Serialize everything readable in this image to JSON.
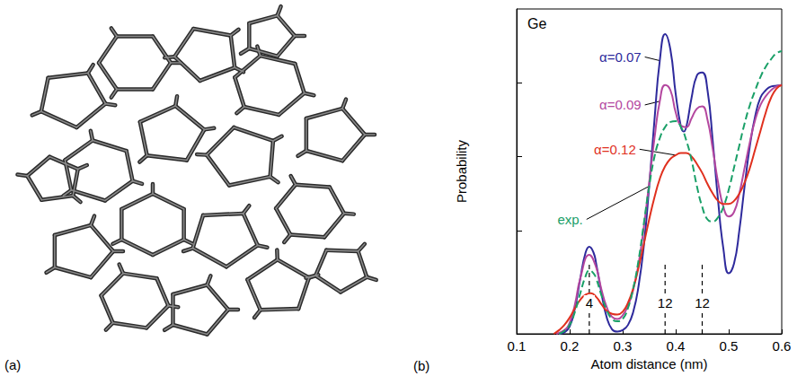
{
  "panel_labels": {
    "a": "(a)",
    "b": "(b)"
  },
  "chart_data": {
    "type": "line",
    "title": "Ge",
    "x_label": "Atom distance (nm)",
    "y_label": "Probability",
    "xlim": [
      0.1,
      0.6
    ],
    "xticks": [
      0.1,
      0.2,
      0.3,
      0.4,
      0.5,
      0.6
    ],
    "ylim": [
      0,
      4.4
    ],
    "yticks": [
      1.4,
      2.4,
      3.4
    ],
    "tick_labels": "x",
    "series": [
      {
        "name": "α=0.07",
        "color": "#2e2a9c",
        "line_style": "solid",
        "x": [
          0.18,
          0.19,
          0.2,
          0.21,
          0.22,
          0.23,
          0.237,
          0.245,
          0.25,
          0.26,
          0.27,
          0.28,
          0.29,
          0.3,
          0.31,
          0.32,
          0.33,
          0.34,
          0.35,
          0.36,
          0.37,
          0.38,
          0.39,
          0.4,
          0.41,
          0.415,
          0.42,
          0.43,
          0.44,
          0.45,
          0.46,
          0.47,
          0.48,
          0.49,
          0.5,
          0.51,
          0.52,
          0.53,
          0.54,
          0.55,
          0.56,
          0.57,
          0.58,
          0.59,
          0.6
        ],
        "values": [
          0,
          0.02,
          0.1,
          0.35,
          0.75,
          1.1,
          1.18,
          1.1,
          0.95,
          0.55,
          0.22,
          0.06,
          0.03,
          0.05,
          0.12,
          0.3,
          0.65,
          1.2,
          2.0,
          2.9,
          3.7,
          4.06,
          3.85,
          3.25,
          2.8,
          2.74,
          2.8,
          3.2,
          3.5,
          3.54,
          3.3,
          2.6,
          1.8,
          1.15,
          0.82,
          0.95,
          1.4,
          2.0,
          2.55,
          2.95,
          3.2,
          3.3,
          3.35,
          3.36,
          3.37
        ]
      },
      {
        "name": "α=0.09",
        "color": "#b4479f",
        "line_style": "solid",
        "x": [
          0.175,
          0.19,
          0.2,
          0.21,
          0.22,
          0.237,
          0.25,
          0.26,
          0.27,
          0.28,
          0.29,
          0.3,
          0.31,
          0.32,
          0.33,
          0.34,
          0.35,
          0.36,
          0.37,
          0.38,
          0.39,
          0.4,
          0.41,
          0.42,
          0.43,
          0.44,
          0.45,
          0.46,
          0.47,
          0.48,
          0.49,
          0.5,
          0.51,
          0.52,
          0.53,
          0.54,
          0.55,
          0.56,
          0.57,
          0.58,
          0.59,
          0.6
        ],
        "values": [
          0,
          0.05,
          0.15,
          0.4,
          0.75,
          1.07,
          0.9,
          0.6,
          0.36,
          0.23,
          0.2,
          0.25,
          0.38,
          0.6,
          0.95,
          1.45,
          2.05,
          2.65,
          3.15,
          3.37,
          3.3,
          3.0,
          2.82,
          2.8,
          2.92,
          3.05,
          3.08,
          2.9,
          2.5,
          2.05,
          1.72,
          1.59,
          1.65,
          1.9,
          2.25,
          2.6,
          2.9,
          3.1,
          3.22,
          3.3,
          3.35,
          3.37
        ]
      },
      {
        "name": "α=0.12",
        "color": "#e0301e",
        "line_style": "solid",
        "x": [
          0.17,
          0.18,
          0.19,
          0.2,
          0.21,
          0.22,
          0.23,
          0.24,
          0.25,
          0.26,
          0.27,
          0.28,
          0.29,
          0.3,
          0.31,
          0.32,
          0.33,
          0.34,
          0.35,
          0.36,
          0.37,
          0.38,
          0.39,
          0.4,
          0.41,
          0.42,
          0.43,
          0.44,
          0.45,
          0.46,
          0.47,
          0.48,
          0.49,
          0.5,
          0.51,
          0.52,
          0.53,
          0.54,
          0.55,
          0.56,
          0.57,
          0.58,
          0.59,
          0.6
        ],
        "values": [
          0,
          0.05,
          0.12,
          0.22,
          0.35,
          0.46,
          0.53,
          0.55,
          0.5,
          0.4,
          0.31,
          0.27,
          0.26,
          0.3,
          0.42,
          0.62,
          0.9,
          1.22,
          1.55,
          1.85,
          2.1,
          2.27,
          2.37,
          2.42,
          2.45,
          2.45,
          2.4,
          2.3,
          2.18,
          2.03,
          1.9,
          1.8,
          1.76,
          1.76,
          1.8,
          1.9,
          2.05,
          2.25,
          2.5,
          2.75,
          3.0,
          3.2,
          3.32,
          3.37
        ]
      },
      {
        "name": "exp.",
        "color": "#1aa068",
        "line_style": "dashed",
        "x": [
          0.18,
          0.19,
          0.2,
          0.21,
          0.22,
          0.23,
          0.237,
          0.245,
          0.25,
          0.26,
          0.27,
          0.28,
          0.29,
          0.3,
          0.31,
          0.32,
          0.33,
          0.34,
          0.35,
          0.36,
          0.37,
          0.38,
          0.39,
          0.4,
          0.41,
          0.42,
          0.43,
          0.44,
          0.45,
          0.46,
          0.47,
          0.48,
          0.49,
          0.5,
          0.51,
          0.52,
          0.53,
          0.54,
          0.55,
          0.56,
          0.57,
          0.58,
          0.59,
          0.6
        ],
        "values": [
          0,
          0.04,
          0.12,
          0.3,
          0.55,
          0.78,
          0.86,
          0.82,
          0.75,
          0.52,
          0.32,
          0.2,
          0.17,
          0.2,
          0.35,
          0.62,
          1.0,
          1.5,
          2.0,
          2.4,
          2.65,
          2.8,
          2.87,
          2.88,
          2.8,
          2.62,
          2.35,
          2.0,
          1.72,
          1.55,
          1.52,
          1.58,
          1.72,
          1.95,
          2.25,
          2.55,
          2.85,
          3.1,
          3.3,
          3.48,
          3.62,
          3.72,
          3.8,
          3.83
        ]
      }
    ],
    "shells": [
      {
        "x": 0.237,
        "count": 4
      },
      {
        "x": 0.38,
        "count": 12
      },
      {
        "x": 0.45,
        "count": 12
      }
    ]
  }
}
